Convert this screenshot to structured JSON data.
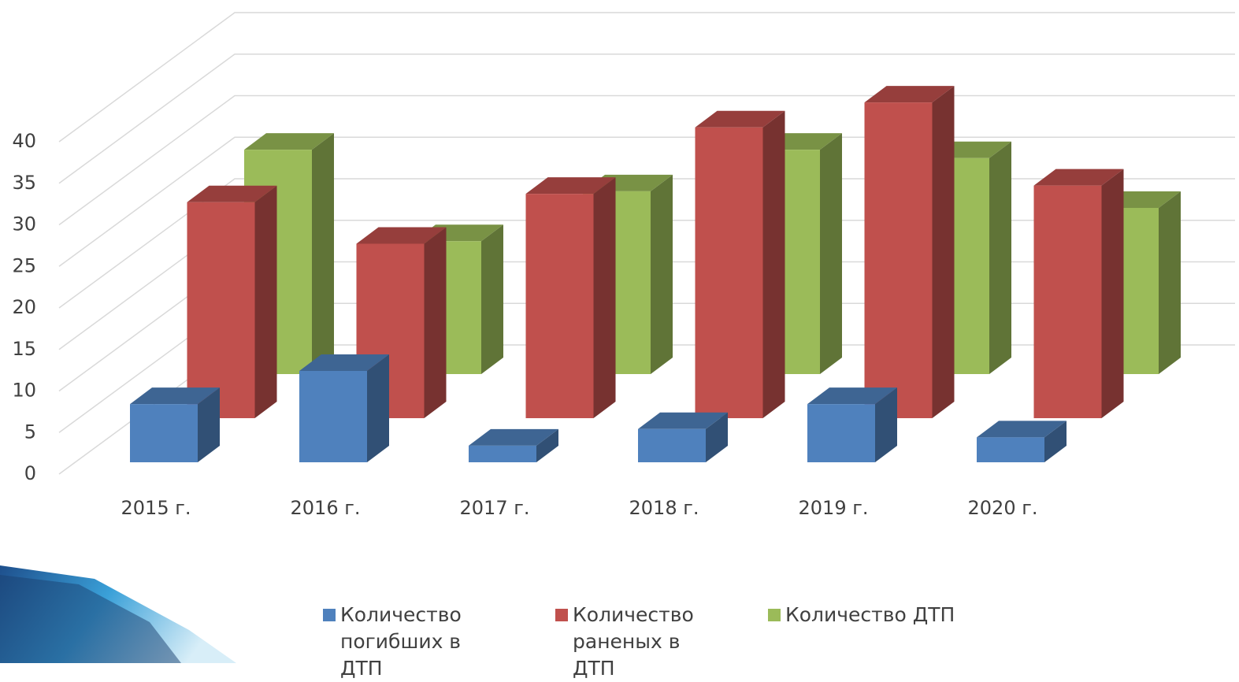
{
  "chart_data": {
    "type": "bar3d",
    "categories": [
      "2015 г.",
      "2016 г.",
      "2017 г.",
      "2018 г.",
      "2019 г.",
      "2020 г."
    ],
    "series": [
      {
        "name": "Количество погибших в ДТП",
        "color": "#4f81bd",
        "values": [
          7,
          11,
          2,
          4,
          7,
          3
        ]
      },
      {
        "name": "Количество раненых в ДТП",
        "color": "#c0504d",
        "values": [
          26,
          21,
          27,
          35,
          38,
          28
        ]
      },
      {
        "name": "Количество ДТП",
        "color": "#9bbb59",
        "values": [
          27,
          16,
          22,
          27,
          26,
          20
        ]
      }
    ],
    "ylim": [
      0,
      40
    ],
    "yticks": [
      0,
      5,
      10,
      15,
      20,
      25,
      30,
      35,
      40
    ],
    "grid": true
  }
}
